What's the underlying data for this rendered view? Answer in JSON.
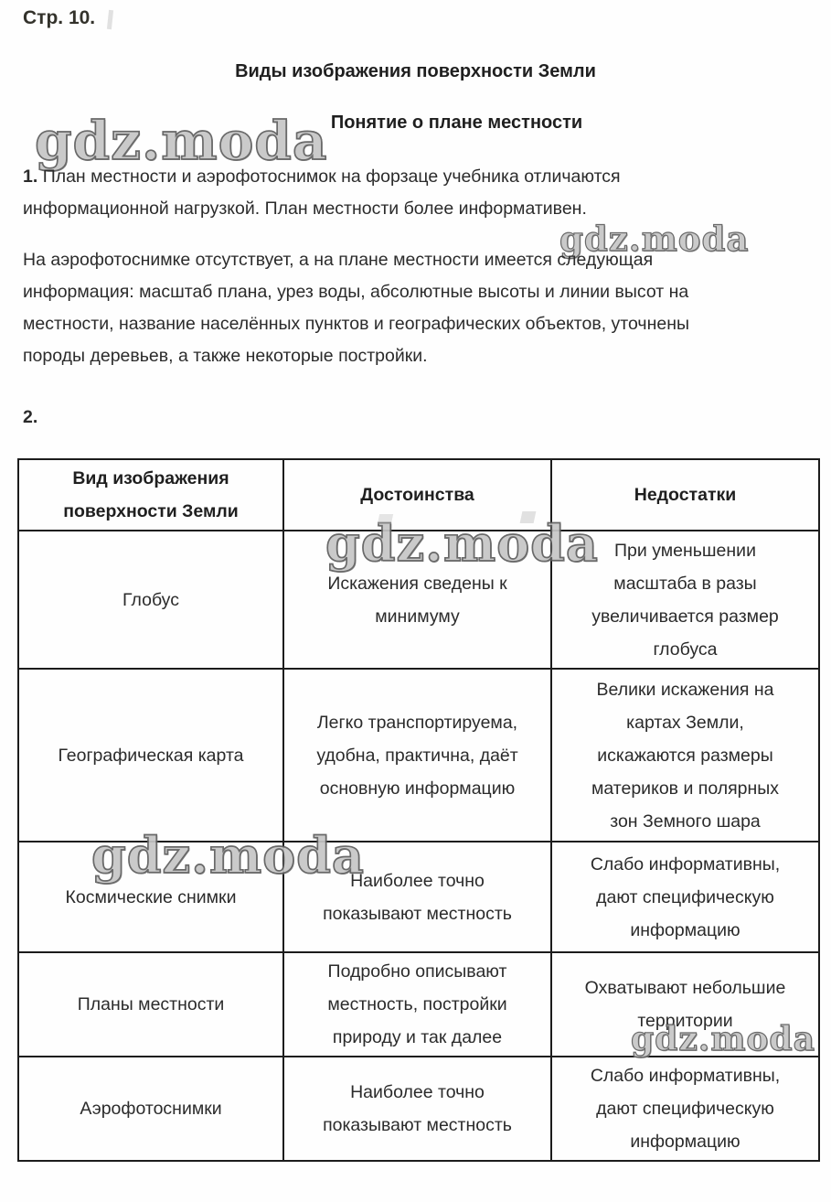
{
  "page_label": "Стр. 10.",
  "title": "Виды изображения поверхности Земли",
  "subtitle": "Понятие о плане местности",
  "watermark_text": "gdz.moda",
  "answers": {
    "item1_number": "1.",
    "item1_text": "План местности и аэрофотоснимок на форзаце учебника отличаются\nинформационной нагрузкой. План местности более информативен.",
    "item1_continuation": "На аэрофотоснимке отсутствует, а на плане местности имеется следующая\nинформация: масштаб плана, урез воды, абсолютные высоты и линии высот на\nместности, название населённых пунктов и географических объектов, уточнены\nпороды деревьев, а также некоторые постройки.",
    "item2_number": "2."
  },
  "table": {
    "headers": {
      "kind": "Вид изображения\nповерхности Земли",
      "pros": "Достоинства",
      "cons": "Недостатки"
    },
    "rows": [
      {
        "kind": "Глобус",
        "pros": "Искажения сведены к\nминимуму",
        "cons": "При уменьшении\nмасштаба в разы\nувеличивается размер\nглобуса"
      },
      {
        "kind": "Географическая карта",
        "pros": "Легко транспортируема,\nудобна, практична, даёт\nосновную информацию",
        "cons": "Велики искажения на\nкартах Земли,\nискажаются размеры\nматериков и полярных\nзон Земного шара"
      },
      {
        "kind": "Космические снимки",
        "pros": "Наиболее точно\nпоказывают местность",
        "cons": "Слабо информативны,\nдают специфическую\nинформацию"
      },
      {
        "kind": "Планы местности",
        "pros": "Подробно описывают\nместность, постройки\nприроду и так далее",
        "cons": "Охватывают небольшие\nтерритории"
      },
      {
        "kind": "Аэрофотоснимки",
        "pros": "Наиболее точно\nпоказывают местность",
        "cons": "Слабо информативны,\nдают специфическую\nинформацию"
      }
    ]
  },
  "colors": {
    "text": "#2b2b2b",
    "border": "#1c1c1c",
    "watermark_fill": "#c6c6c6",
    "watermark_stroke": "#5d5d5d",
    "background": "#fefefe"
  }
}
